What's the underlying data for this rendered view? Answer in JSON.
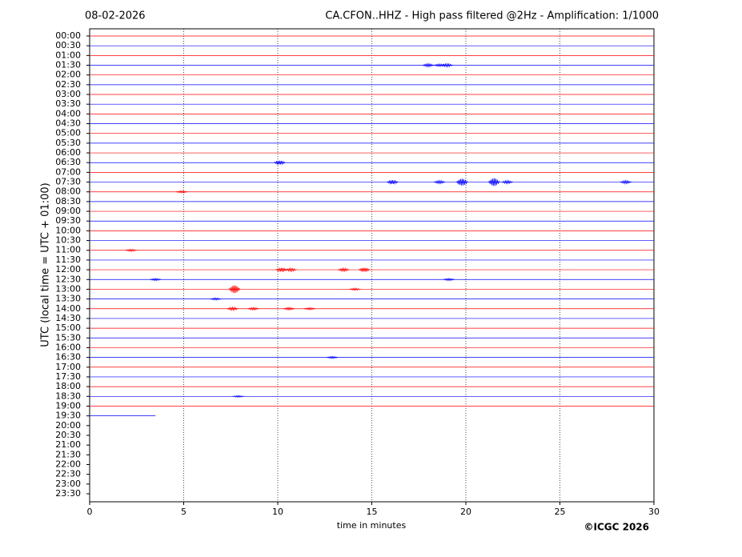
{
  "chart_data": {
    "type": "helicorder",
    "date": "08-02-2026",
    "title": "CA.CFON..HHZ - High pass filtered @2Hz - Amplification: 1/1000",
    "xlabel": "time in minutes",
    "ylabel": "UTC (local time = UTC + 01:00)",
    "credit": "©ICGC 2026",
    "xlim": [
      0,
      30
    ],
    "xticks": [
      0,
      5,
      10,
      15,
      20,
      25,
      30
    ],
    "grid": true,
    "colors": [
      "#ff0000",
      "#0000ff"
    ],
    "categories": [
      "00:00",
      "00:30",
      "01:00",
      "01:30",
      "02:00",
      "02:30",
      "03:00",
      "03:30",
      "04:00",
      "04:30",
      "05:00",
      "05:30",
      "06:00",
      "06:30",
      "07:00",
      "07:30",
      "08:00",
      "08:30",
      "09:00",
      "09:30",
      "10:00",
      "10:30",
      "11:00",
      "11:30",
      "12:00",
      "12:30",
      "13:00",
      "13:30",
      "14:00",
      "14:30",
      "15:00",
      "15:30",
      "16:00",
      "16:30",
      "17:00",
      "17:30",
      "18:00",
      "18:30",
      "19:00",
      "19:30",
      "20:00",
      "20:30",
      "21:00",
      "21:30",
      "22:00",
      "22:30",
      "23:00",
      "23:30"
    ],
    "values": [
      30,
      30,
      30,
      30,
      30,
      30,
      30,
      30,
      30,
      30,
      30,
      30,
      30,
      30,
      30,
      30,
      30,
      30,
      30,
      30,
      30,
      30,
      30,
      30,
      30,
      30,
      30,
      30,
      30,
      30,
      30,
      30,
      30,
      30,
      30,
      30,
      30,
      30,
      30,
      3.5,
      null,
      null,
      null,
      null,
      null,
      null,
      null,
      null
    ],
    "events": [
      {
        "row": 3,
        "x": 18.0,
        "amp": 0.15
      },
      {
        "row": 3,
        "x": 18.6,
        "amp": 0.12
      },
      {
        "row": 3,
        "x": 19.0,
        "amp": 0.15
      },
      {
        "row": 13,
        "x": 10.1,
        "amp": 0.2
      },
      {
        "row": 15,
        "x": 16.1,
        "amp": 0.2
      },
      {
        "row": 15,
        "x": 18.6,
        "amp": 0.15
      },
      {
        "row": 15,
        "x": 19.8,
        "amp": 0.35
      },
      {
        "row": 15,
        "x": 21.5,
        "amp": 0.4
      },
      {
        "row": 15,
        "x": 22.2,
        "amp": 0.15
      },
      {
        "row": 15,
        "x": 28.5,
        "amp": 0.15
      },
      {
        "row": 16,
        "x": 4.9,
        "amp": 0.1
      },
      {
        "row": 22,
        "x": 2.2,
        "amp": 0.1
      },
      {
        "row": 24,
        "x": 10.2,
        "amp": 0.2
      },
      {
        "row": 24,
        "x": 10.7,
        "amp": 0.15
      },
      {
        "row": 24,
        "x": 13.5,
        "amp": 0.15
      },
      {
        "row": 24,
        "x": 14.6,
        "amp": 0.2
      },
      {
        "row": 25,
        "x": 3.5,
        "amp": 0.1
      },
      {
        "row": 25,
        "x": 19.1,
        "amp": 0.1
      },
      {
        "row": 26,
        "x": 7.7,
        "amp": 0.4
      },
      {
        "row": 26,
        "x": 14.1,
        "amp": 0.1
      },
      {
        "row": 27,
        "x": 6.7,
        "amp": 0.1
      },
      {
        "row": 28,
        "x": 7.6,
        "amp": 0.15
      },
      {
        "row": 28,
        "x": 8.7,
        "amp": 0.12
      },
      {
        "row": 28,
        "x": 10.6,
        "amp": 0.12
      },
      {
        "row": 28,
        "x": 11.7,
        "amp": 0.1
      },
      {
        "row": 33,
        "x": 12.9,
        "amp": 0.1
      },
      {
        "row": 37,
        "x": 7.9,
        "amp": 0.08
      }
    ]
  }
}
